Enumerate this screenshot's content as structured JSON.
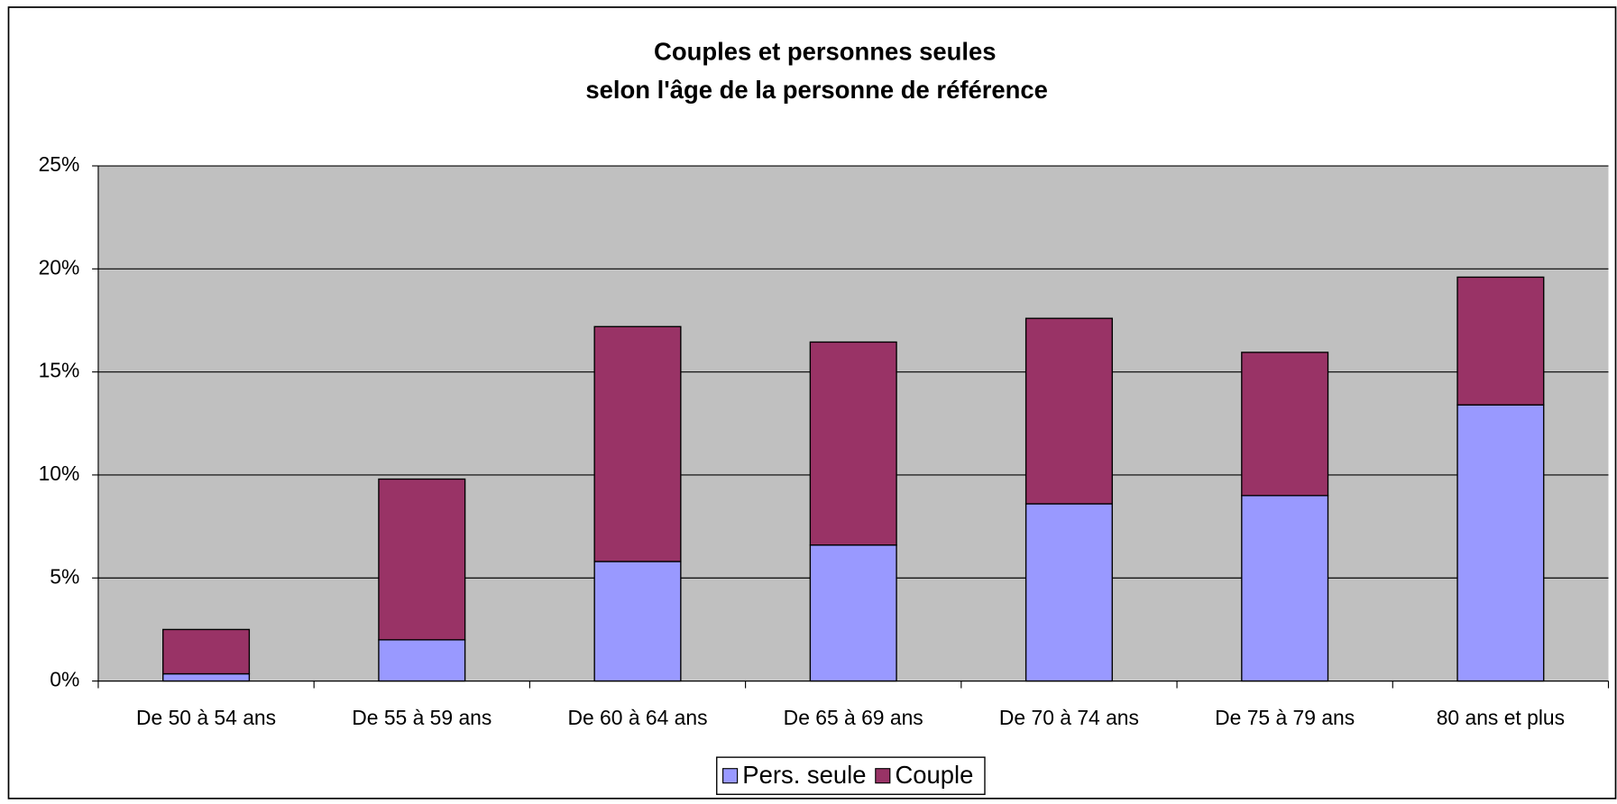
{
  "chart_data": {
    "type": "stacked_bar",
    "title": [
      "Couples et personnes seules",
      "selon l'âge de la personne de référence"
    ],
    "categories": [
      "De 50 à 54 ans",
      "De 55 à 59 ans",
      "De 60 à 64 ans",
      "De 65 à 69 ans",
      "De 70 à 74 ans",
      "De 75 à 79 ans",
      "80 ans et plus"
    ],
    "series": [
      {
        "name": "Pers. seule",
        "color": "#9999ff",
        "values": [
          0.35,
          2,
          5.8,
          6.6,
          8.6,
          9,
          13.4
        ]
      },
      {
        "name": "Couple",
        "color": "#993366",
        "values": [
          2.15,
          7.8,
          11.4,
          9.85,
          9,
          6.95,
          6.2
        ]
      }
    ],
    "ylim": [
      0,
      25
    ],
    "yticks": [
      {
        "value": 0,
        "label": "0%"
      },
      {
        "value": 5,
        "label": "5%"
      },
      {
        "value": 10,
        "label": "10%"
      },
      {
        "value": 15,
        "label": "15%"
      },
      {
        "value": 20,
        "label": "20%"
      },
      {
        "value": 25,
        "label": "25%"
      }
    ],
    "grid": true,
    "legend": "bottom"
  }
}
